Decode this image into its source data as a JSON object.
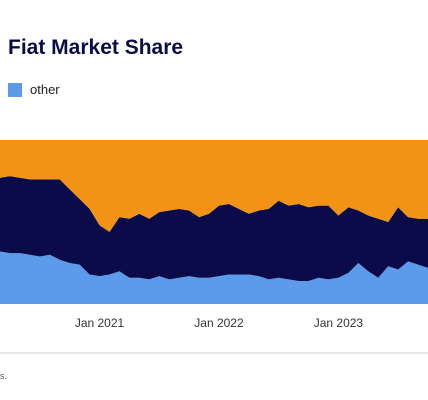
{
  "title": "Fiat Market Share",
  "legend": {
    "label": "other"
  },
  "footnote": "s.",
  "colors": {
    "other": "#5b9bea",
    "mid": "#0b0b4a",
    "top": "#f39316",
    "baseline": "#cccccc"
  },
  "chart_data": {
    "type": "area",
    "title": "Fiat Market Share",
    "stacked": true,
    "x_ticks": [
      "Jan 2021",
      "Jan 2022",
      "Jan 2023"
    ],
    "x": [
      "2020-03",
      "2020-04",
      "2020-05",
      "2020-06",
      "2020-07",
      "2020-08",
      "2020-09",
      "2020-10",
      "2020-11",
      "2020-12",
      "2021-01",
      "2021-02",
      "2021-03",
      "2021-04",
      "2021-05",
      "2021-06",
      "2021-07",
      "2021-08",
      "2021-09",
      "2021-10",
      "2021-11",
      "2021-12",
      "2022-01",
      "2022-02",
      "2022-03",
      "2022-04",
      "2022-05",
      "2022-06",
      "2022-07",
      "2022-08",
      "2022-09",
      "2022-10",
      "2022-11",
      "2022-12",
      "2023-01",
      "2023-02",
      "2023-03",
      "2023-04",
      "2023-05",
      "2023-06",
      "2023-07",
      "2023-08",
      "2023-09",
      "2023-10"
    ],
    "ylim": [
      0,
      100
    ],
    "series": [
      {
        "name": "other",
        "values": [
          32,
          31,
          31,
          30,
          29,
          30,
          27,
          25,
          24,
          18,
          17,
          18,
          20,
          16,
          16,
          15,
          17,
          15,
          16,
          17,
          16,
          16,
          17,
          18,
          18,
          18,
          17,
          15,
          16,
          15,
          14,
          14,
          16,
          15,
          16,
          19,
          25,
          20,
          16,
          23,
          21,
          26,
          24,
          22
        ]
      },
      {
        "values": [
          45,
          47,
          46,
          46,
          47,
          46,
          49,
          45,
          40,
          40,
          31,
          26,
          33,
          36,
          39,
          37,
          39,
          42,
          42,
          40,
          37,
          39,
          43,
          43,
          40,
          37,
          40,
          43,
          47,
          45,
          47,
          45,
          44,
          45,
          38,
          40,
          32,
          34,
          36,
          27,
          38,
          27,
          28,
          30
        ]
      },
      {
        "values": [
          23,
          22,
          23,
          24,
          24,
          24,
          24,
          30,
          36,
          42,
          52,
          56,
          47,
          48,
          45,
          48,
          44,
          43,
          42,
          43,
          47,
          45,
          40,
          39,
          42,
          45,
          43,
          42,
          37,
          40,
          39,
          41,
          40,
          40,
          46,
          41,
          43,
          46,
          48,
          50,
          41,
          47,
          48,
          48
        ]
      }
    ]
  }
}
